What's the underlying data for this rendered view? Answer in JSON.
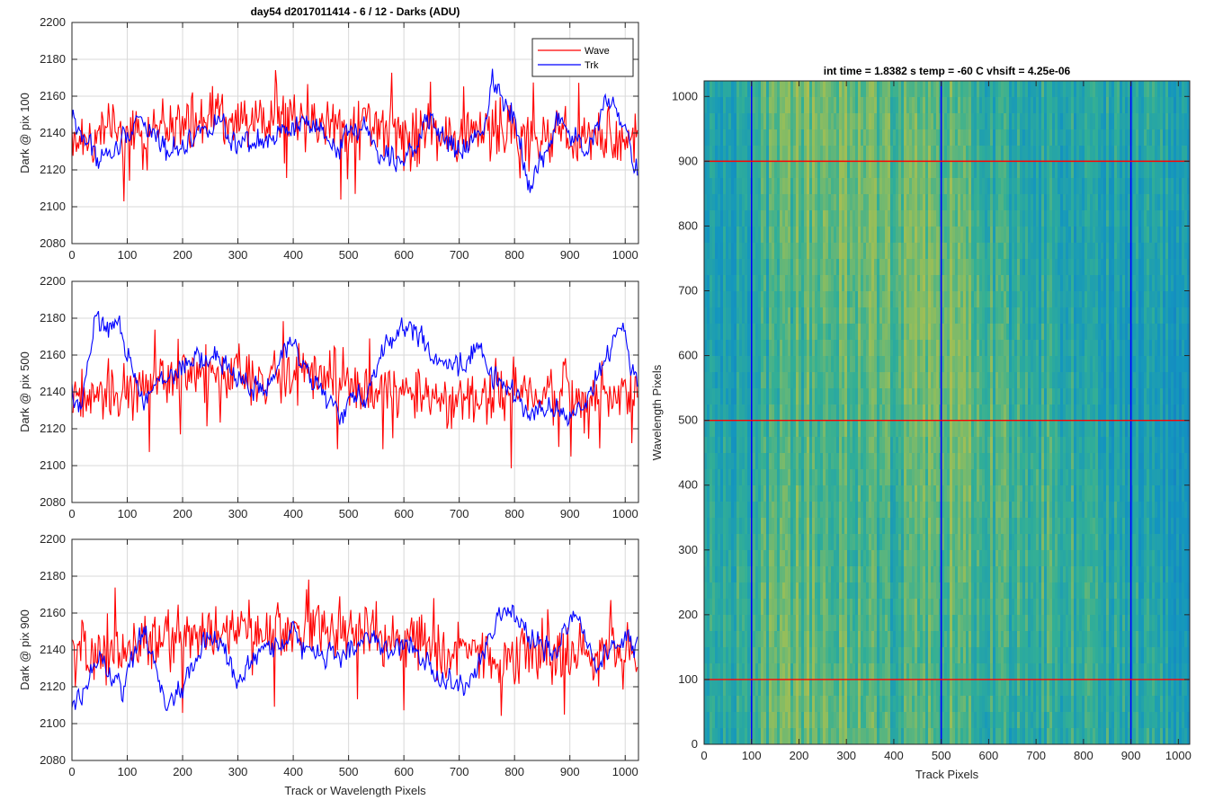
{
  "figure_title": "day54 d2017011414 - 6 / 12 - Darks (ADU)",
  "colors": {
    "wave": "#ff0000",
    "trk": "#0000ff",
    "grid": "#d9d9d9",
    "axis": "#262626"
  },
  "chart_data": [
    {
      "type": "line",
      "ylabel": "Dark @ pix 100",
      "xlabel": "",
      "xlim": [
        0,
        1024
      ],
      "ylim": [
        2080,
        2200
      ],
      "xticks": [
        0,
        100,
        200,
        300,
        400,
        500,
        600,
        700,
        800,
        900,
        1000
      ],
      "yticks": [
        2080,
        2100,
        2120,
        2140,
        2160,
        2180,
        2200
      ],
      "grid": true,
      "legend": {
        "placement": "top-right",
        "entries": [
          "Wave",
          "Trk"
        ]
      },
      "series": [
        {
          "name": "Wave",
          "color": "#ff0000",
          "x": [
            0,
            50,
            100,
            150,
            200,
            250,
            300,
            350,
            400,
            450,
            500,
            550,
            600,
            650,
            700,
            750,
            800,
            850,
            900,
            950,
            1023
          ],
          "values": [
            2140,
            2138,
            2140,
            2142,
            2145,
            2148,
            2147,
            2148,
            2150,
            2146,
            2145,
            2142,
            2140,
            2141,
            2138,
            2140,
            2141,
            2138,
            2137,
            2138,
            2140
          ],
          "noise": 12
        },
        {
          "name": "Trk",
          "color": "#0000ff",
          "x": [
            0,
            20,
            50,
            80,
            120,
            170,
            220,
            260,
            300,
            350,
            400,
            430,
            470,
            520,
            560,
            600,
            650,
            700,
            740,
            760,
            800,
            830,
            880,
            930,
            970,
            1023
          ],
          "values": [
            2148,
            2138,
            2126,
            2130,
            2150,
            2130,
            2138,
            2148,
            2130,
            2135,
            2142,
            2145,
            2132,
            2145,
            2130,
            2128,
            2145,
            2128,
            2140,
            2168,
            2150,
            2110,
            2148,
            2128,
            2160,
            2122
          ],
          "noise": 4
        }
      ]
    },
    {
      "type": "line",
      "ylabel": "Dark @ pix 500",
      "xlabel": "",
      "xlim": [
        0,
        1024
      ],
      "ylim": [
        2080,
        2200
      ],
      "xticks": [
        0,
        100,
        200,
        300,
        400,
        500,
        600,
        700,
        800,
        900,
        1000
      ],
      "yticks": [
        2080,
        2100,
        2120,
        2140,
        2160,
        2180,
        2200
      ],
      "grid": true,
      "series": [
        {
          "name": "Wave",
          "color": "#ff0000",
          "x": [
            0,
            50,
            100,
            150,
            200,
            250,
            300,
            350,
            400,
            450,
            500,
            550,
            600,
            650,
            700,
            750,
            800,
            850,
            900,
            950,
            1023
          ],
          "values": [
            2138,
            2138,
            2140,
            2145,
            2148,
            2150,
            2150,
            2148,
            2152,
            2147,
            2145,
            2140,
            2140,
            2138,
            2135,
            2140,
            2140,
            2137,
            2138,
            2138,
            2140
          ],
          "noise": 12
        },
        {
          "name": "Trk",
          "color": "#0000ff",
          "x": [
            0,
            15,
            40,
            80,
            100,
            130,
            180,
            250,
            300,
            350,
            400,
            460,
            490,
            530,
            570,
            610,
            660,
            690,
            730,
            760,
            800,
            860,
            900,
            930,
            960,
            990,
            1023
          ],
          "values": [
            2140,
            2132,
            2175,
            2176,
            2160,
            2138,
            2150,
            2160,
            2148,
            2140,
            2168,
            2135,
            2128,
            2140,
            2168,
            2178,
            2155,
            2150,
            2165,
            2150,
            2135,
            2130,
            2128,
            2135,
            2155,
            2175,
            2145
          ],
          "noise": 4
        }
      ]
    },
    {
      "type": "line",
      "ylabel": "Dark @ pix 900",
      "xlabel": "Track or Wavelength Pixels",
      "xlim": [
        0,
        1024
      ],
      "ylim": [
        2080,
        2200
      ],
      "xticks": [
        0,
        100,
        200,
        300,
        400,
        500,
        600,
        700,
        800,
        900,
        1000
      ],
      "yticks": [
        2080,
        2100,
        2120,
        2140,
        2160,
        2180,
        2200
      ],
      "grid": true,
      "series": [
        {
          "name": "Wave",
          "color": "#ff0000",
          "x": [
            0,
            50,
            100,
            150,
            200,
            250,
            300,
            350,
            400,
            450,
            500,
            550,
            600,
            650,
            700,
            750,
            800,
            850,
            900,
            950,
            1023
          ],
          "values": [
            2135,
            2137,
            2140,
            2145,
            2148,
            2150,
            2150,
            2148,
            2152,
            2150,
            2150,
            2148,
            2145,
            2142,
            2138,
            2140,
            2138,
            2137,
            2138,
            2137,
            2140
          ],
          "noise": 12
        },
        {
          "name": "Trk",
          "color": "#0000ff",
          "x": [
            0,
            20,
            50,
            90,
            130,
            170,
            210,
            250,
            300,
            350,
            400,
            440,
            490,
            530,
            570,
            610,
            650,
            690,
            720,
            760,
            790,
            820,
            870,
            910,
            950,
            990,
            1023
          ],
          "values": [
            2105,
            2118,
            2135,
            2118,
            2150,
            2110,
            2125,
            2150,
            2125,
            2140,
            2148,
            2135,
            2140,
            2145,
            2140,
            2145,
            2130,
            2118,
            2125,
            2150,
            2165,
            2148,
            2140,
            2158,
            2135,
            2145,
            2142
          ],
          "noise": 4
        }
      ]
    },
    {
      "type": "heatmap",
      "title": "int time = 1.8382 s    temp = -60 C    vhsift = 4.25e-06",
      "xlabel": "Track Pixels",
      "ylabel": "Wavelength Pixels",
      "xlim": [
        0,
        1024
      ],
      "ylim": [
        0,
        1024
      ],
      "xticks": [
        0,
        100,
        200,
        300,
        400,
        500,
        600,
        700,
        800,
        900,
        1000
      ],
      "yticks": [
        0,
        100,
        200,
        300,
        400,
        500,
        600,
        700,
        800,
        900,
        1000
      ],
      "colormap": "parula",
      "column_profile": {
        "x": [
          0,
          80,
          160,
          240,
          300,
          380,
          460,
          520,
          580,
          660,
          760,
          860,
          960,
          1024
        ],
        "level": [
          0.38,
          0.42,
          0.55,
          0.62,
          0.6,
          0.52,
          0.58,
          0.64,
          0.5,
          0.46,
          0.45,
          0.4,
          0.36,
          0.33
        ]
      },
      "vertical_markers": {
        "color": "#0000ff",
        "x": [
          100,
          500,
          900
        ]
      },
      "horizontal_markers": {
        "color": "#ff0000",
        "y": [
          100,
          500,
          900
        ]
      }
    }
  ]
}
